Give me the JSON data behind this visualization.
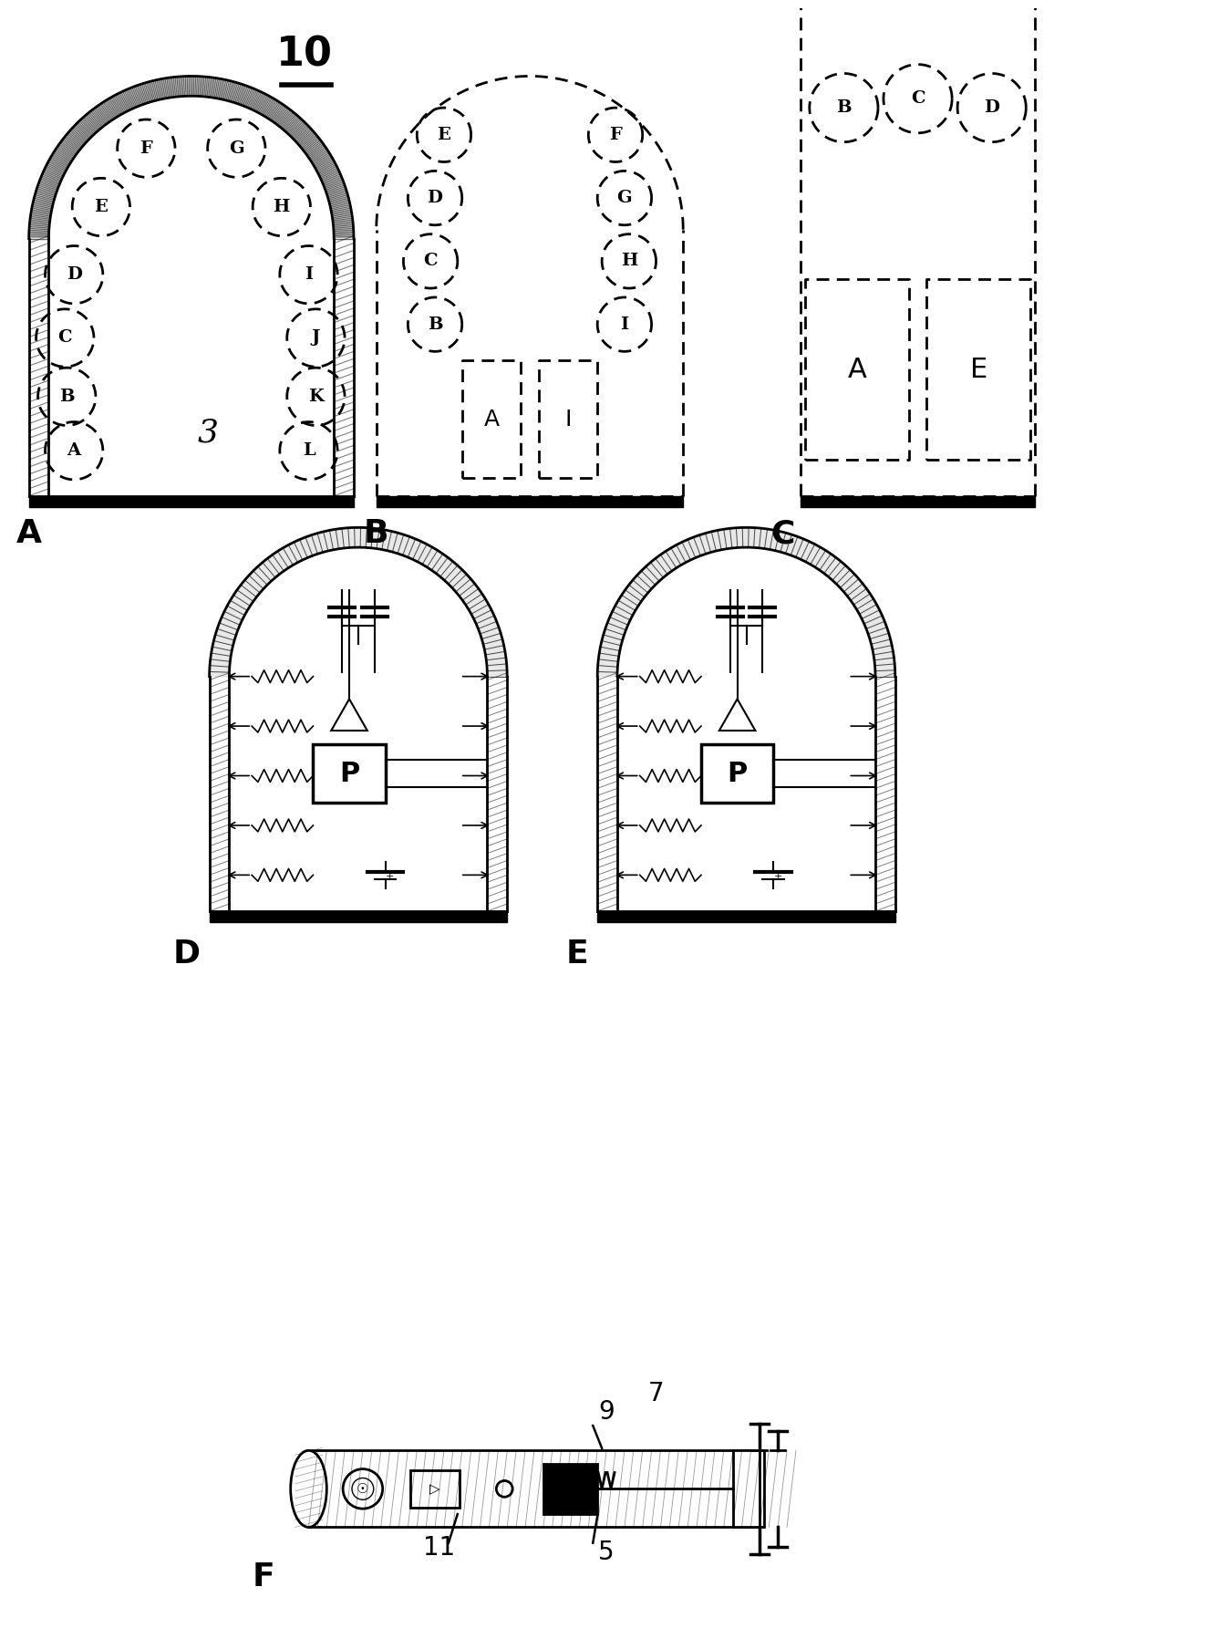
{
  "title": "10",
  "background_color": "#ffffff",
  "fig_width": 13.49,
  "fig_height": 17.97,
  "panelA_left_labels": [
    "A",
    "B",
    "C",
    "D",
    "E",
    "F"
  ],
  "panelA_right_labels": [
    "L",
    "K",
    "J",
    "I",
    "H",
    "G"
  ],
  "panelB_left_labels": [
    "A",
    "B",
    "C",
    "D",
    "E"
  ],
  "panelB_right_labels": [
    "I",
    "H",
    "G",
    "F",
    "E"
  ],
  "panelC_top_labels": [
    "B",
    "C",
    "D"
  ],
  "panelC_tall_labels": [
    "A",
    "E"
  ]
}
